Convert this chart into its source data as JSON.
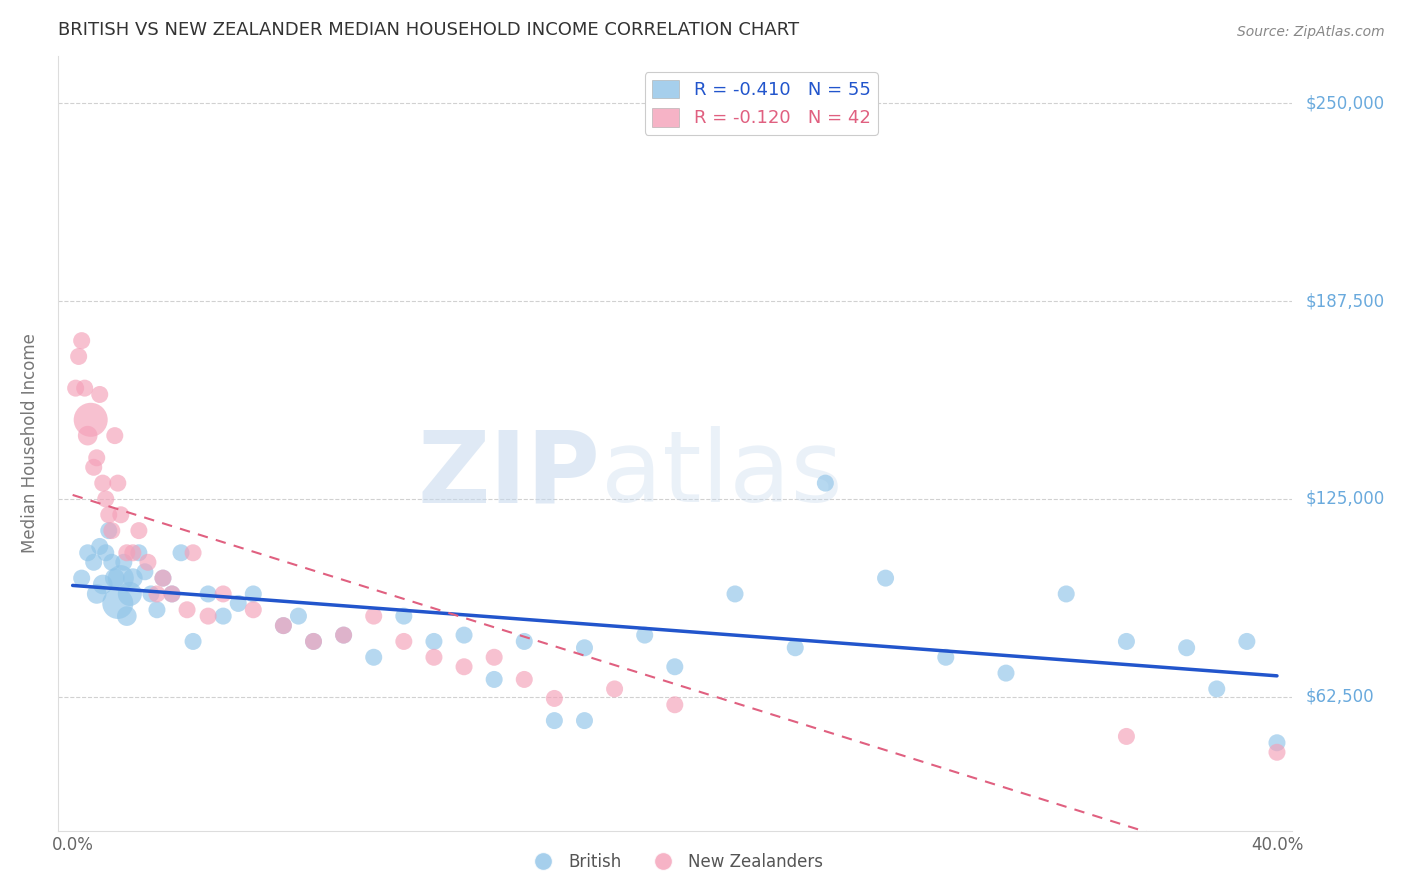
{
  "title": "BRITISH VS NEW ZEALANDER MEDIAN HOUSEHOLD INCOME CORRELATION CHART",
  "source": "Source: ZipAtlas.com",
  "ylabel": "Median Household Income",
  "xlabel": "",
  "xlim": [
    -0.005,
    0.405
  ],
  "ylim": [
    20000,
    265000
  ],
  "ytick_values": [
    62500,
    125000,
    187500,
    250000
  ],
  "ytick_labels": [
    "$62,500",
    "$125,000",
    "$187,500",
    "$250,000"
  ],
  "xtick_values": [
    0.0,
    0.4
  ],
  "xtick_labels": [
    "0.0%",
    "40.0%"
  ],
  "british_color": "#90c4e8",
  "nz_color": "#f4a0b8",
  "british_line_color": "#2255cc",
  "nz_line_color": "#e06080",
  "R_british": -0.41,
  "N_british": 55,
  "R_nz": -0.12,
  "N_nz": 42,
  "watermark_zip": "ZIP",
  "watermark_atlas": "atlas",
  "background_color": "#ffffff",
  "grid_color": "#cccccc",
  "right_label_color": "#6aaadd",
  "title_color": "#333333",
  "british_x": [
    0.003,
    0.005,
    0.007,
    0.008,
    0.009,
    0.01,
    0.011,
    0.012,
    0.013,
    0.014,
    0.015,
    0.016,
    0.017,
    0.018,
    0.019,
    0.02,
    0.022,
    0.024,
    0.026,
    0.028,
    0.03,
    0.033,
    0.036,
    0.04,
    0.045,
    0.05,
    0.055,
    0.06,
    0.07,
    0.075,
    0.08,
    0.09,
    0.1,
    0.11,
    0.12,
    0.13,
    0.14,
    0.15,
    0.16,
    0.17,
    0.19,
    0.2,
    0.22,
    0.24,
    0.25,
    0.27,
    0.29,
    0.31,
    0.33,
    0.35,
    0.37,
    0.38,
    0.39,
    0.4,
    0.17
  ],
  "british_y": [
    100000,
    108000,
    105000,
    95000,
    110000,
    98000,
    108000,
    115000,
    105000,
    100000,
    92000,
    100000,
    105000,
    88000,
    95000,
    100000,
    108000,
    102000,
    95000,
    90000,
    100000,
    95000,
    108000,
    80000,
    95000,
    88000,
    92000,
    95000,
    85000,
    88000,
    80000,
    82000,
    75000,
    88000,
    80000,
    82000,
    68000,
    80000,
    55000,
    78000,
    82000,
    72000,
    95000,
    78000,
    130000,
    100000,
    75000,
    70000,
    95000,
    80000,
    78000,
    65000,
    80000,
    48000,
    55000
  ],
  "british_size": [
    150,
    150,
    150,
    200,
    150,
    200,
    150,
    150,
    150,
    200,
    500,
    350,
    150,
    200,
    300,
    200,
    150,
    150,
    150,
    150,
    150,
    150,
    150,
    150,
    150,
    150,
    150,
    150,
    150,
    150,
    150,
    150,
    150,
    150,
    150,
    150,
    150,
    150,
    150,
    150,
    150,
    150,
    150,
    150,
    150,
    150,
    150,
    150,
    150,
    150,
    150,
    150,
    150,
    150,
    150
  ],
  "nz_x": [
    0.001,
    0.002,
    0.003,
    0.004,
    0.005,
    0.006,
    0.007,
    0.008,
    0.009,
    0.01,
    0.011,
    0.012,
    0.013,
    0.014,
    0.015,
    0.016,
    0.018,
    0.02,
    0.022,
    0.025,
    0.028,
    0.03,
    0.033,
    0.038,
    0.04,
    0.045,
    0.05,
    0.06,
    0.07,
    0.08,
    0.09,
    0.1,
    0.11,
    0.12,
    0.13,
    0.14,
    0.15,
    0.16,
    0.18,
    0.2,
    0.35,
    0.4
  ],
  "nz_y": [
    160000,
    170000,
    175000,
    160000,
    145000,
    150000,
    135000,
    138000,
    158000,
    130000,
    125000,
    120000,
    115000,
    145000,
    130000,
    120000,
    108000,
    108000,
    115000,
    105000,
    95000,
    100000,
    95000,
    90000,
    108000,
    88000,
    95000,
    90000,
    85000,
    80000,
    82000,
    88000,
    80000,
    75000,
    72000,
    75000,
    68000,
    62000,
    65000,
    60000,
    50000,
    45000
  ],
  "nz_size": [
    150,
    150,
    150,
    150,
    200,
    600,
    150,
    150,
    150,
    150,
    150,
    150,
    150,
    150,
    150,
    150,
    150,
    150,
    150,
    150,
    150,
    150,
    150,
    150,
    150,
    150,
    150,
    150,
    150,
    150,
    150,
    150,
    150,
    150,
    150,
    150,
    150,
    150,
    150,
    150,
    150,
    150
  ]
}
